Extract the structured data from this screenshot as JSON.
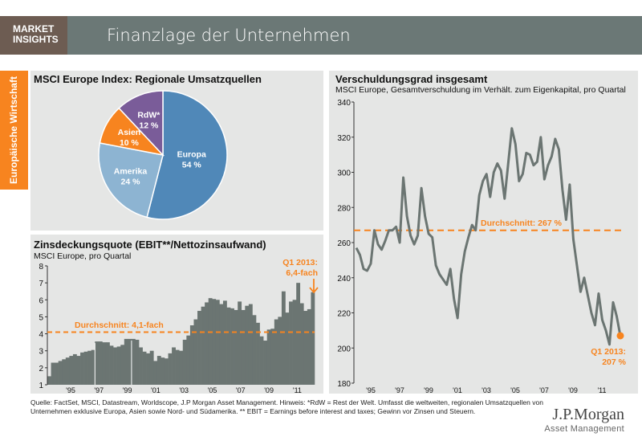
{
  "header": {
    "brand_line1": "MARKET",
    "brand_line2": "INSIGHTS",
    "title": "Finanzlage der Unternehmen"
  },
  "sidebar": {
    "label": "Europäische Wirtschaft",
    "color": "#f7841f"
  },
  "chart_data": [
    {
      "type": "pie",
      "title": "MSCI Europe Index: Regionale Umsatzquellen",
      "slices": [
        {
          "label": "Europa",
          "value": 54,
          "text": "54 %",
          "color": "#5088b8"
        },
        {
          "label": "Amerika",
          "value": 24,
          "text": "24 %",
          "color": "#8db4d2"
        },
        {
          "label": "Asien",
          "value": 10,
          "text": "10 %",
          "color": "#f7841f"
        },
        {
          "label": "RdW*",
          "value": 12,
          "text": "12 %",
          "color": "#7a5c99"
        }
      ]
    },
    {
      "type": "bar",
      "title": "Zinsdeckungsquote (EBIT**/Nettozinsaufwand)",
      "subtitle": "MSCI Europe, pro Quartal",
      "ylim": [
        1,
        8
      ],
      "yticks": [
        1,
        2,
        3,
        4,
        5,
        6,
        7,
        8
      ],
      "xticks": [
        "'95",
        "'97",
        "'99",
        "'01",
        "'03",
        "'05",
        "'07",
        "'09",
        "'11"
      ],
      "average": 4.1,
      "average_label": "Durchschnitt: 4,1-fach",
      "annotation": [
        "Q1 2013:",
        "6,4-fach"
      ],
      "color": "#6b7572",
      "accent": "#f7841f",
      "values": [
        1.5,
        2.3,
        2.3,
        2.4,
        2.5,
        2.6,
        2.7,
        2.8,
        2.7,
        2.9,
        2.95,
        3.0,
        3.05,
        3.55,
        3.55,
        3.5,
        3.5,
        3.3,
        3.2,
        3.25,
        3.35,
        3.7,
        3.7,
        3.7,
        3.65,
        3.2,
        2.95,
        2.85,
        3.0,
        2.4,
        2.7,
        2.6,
        2.55,
        2.85,
        3.2,
        3.05,
        3.0,
        3.65,
        3.9,
        4.5,
        4.85,
        5.35,
        5.6,
        5.85,
        6.1,
        6.05,
        6.0,
        5.75,
        5.95,
        5.55,
        5.5,
        5.4,
        5.9,
        5.4,
        5.65,
        5.75,
        5.1,
        4.65,
        3.85,
        3.6,
        4.25,
        4.3,
        4.85,
        5.0,
        6.5,
        5.25,
        5.9,
        6.0,
        7.0,
        5.8,
        5.35,
        5.45,
        6.45
      ]
    },
    {
      "type": "line",
      "title": "Verschuldungsgrad insgesamt",
      "subtitle": "MSCI Europe, Gesamtverschuldung im Verhält. zum Eigenkapital, pro Quartal",
      "ylim": [
        180,
        340
      ],
      "yticks": [
        180,
        200,
        220,
        240,
        260,
        280,
        300,
        320,
        340
      ],
      "xticks": [
        "'95",
        "'97",
        "'99",
        "'01",
        "'03",
        "'05",
        "'07",
        "'09",
        "'11"
      ],
      "average": 267,
      "average_label": "Durchschnitt: 267 %",
      "annotation": [
        "Q1 2013:",
        "207 %"
      ],
      "color": "#6b7572",
      "accent": "#f7841f",
      "values": [
        257,
        253,
        245,
        244,
        248,
        267,
        259,
        256,
        261,
        267,
        267,
        269,
        260,
        297,
        275,
        264,
        259,
        264,
        291,
        275,
        265,
        263,
        247,
        242,
        239,
        236,
        245,
        228,
        217,
        242,
        255,
        263,
        270,
        267,
        287,
        295,
        299,
        286,
        300,
        305,
        301,
        285,
        305,
        325,
        316,
        295,
        299,
        311,
        310,
        304,
        306,
        320,
        296,
        304,
        309,
        319,
        313,
        290,
        273,
        293,
        262,
        247,
        232,
        240,
        230,
        220,
        213,
        231,
        216,
        210,
        202,
        226,
        218,
        207
      ]
    }
  ],
  "footer": {
    "text": "Quelle: FactSet, MSCI, Datastream, Worldscope, J.P Morgan Asset Management. Hinweis: *RdW = Rest der Welt. Umfasst die weltweiten, regionalen Umsatzquellen von Unternehmen exklusive Europa, Asien  sowie Nord- und Südamerika. ** EBIT = Earnings before interest and taxes; Gewinn vor Zinsen und Steuern.",
    "logo_line1": "J.P.Morgan",
    "logo_line2": "Asset Management"
  }
}
